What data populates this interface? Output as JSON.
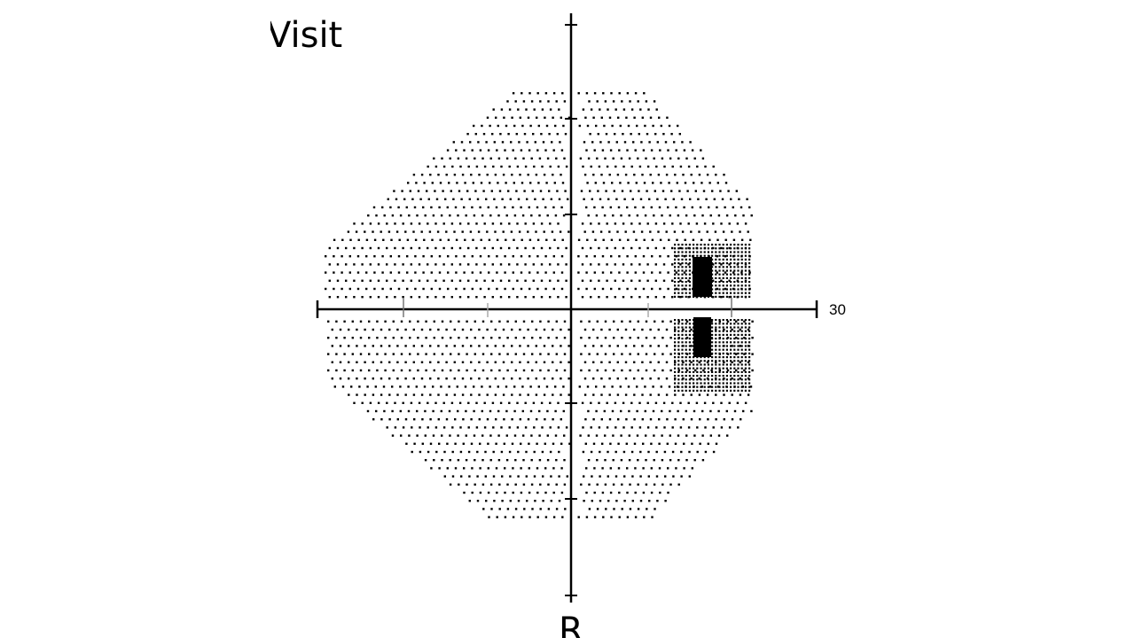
{
  "header": {
    "title": "Visit"
  },
  "footer": {
    "label": "R"
  },
  "plot": {
    "type": "visual-field-greyscale-map",
    "axis_label_right": "30",
    "colors": {
      "dot": "#000000",
      "axis": "#000000",
      "background": "#ffffff"
    }
  }
}
